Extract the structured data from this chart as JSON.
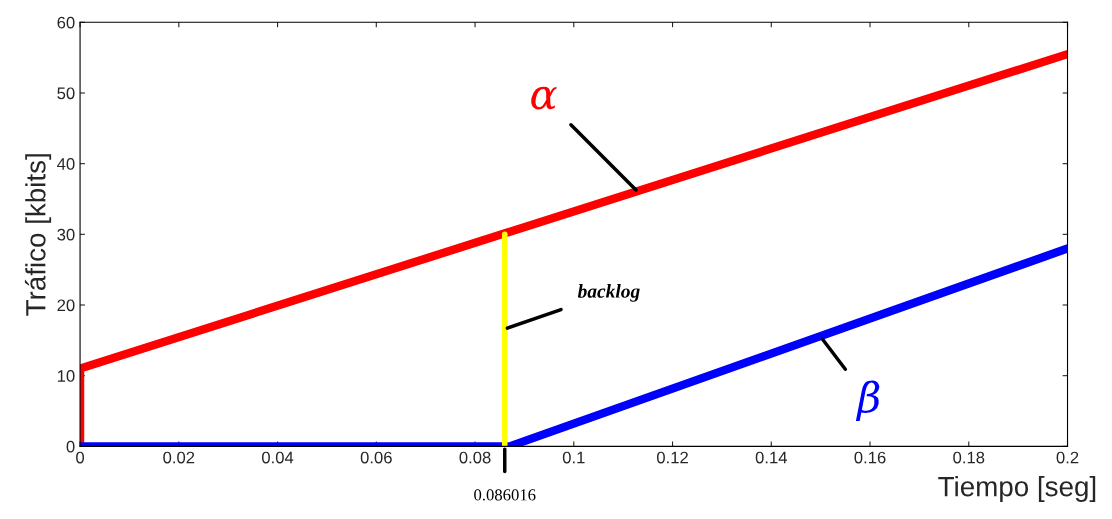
{
  "chart_data": {
    "type": "line",
    "xlabel": "Tiempo [seg]",
    "ylabel": "Tráfico [kbits]",
    "xlim": [
      0,
      0.2
    ],
    "ylim": [
      0,
      60
    ],
    "xticks": [
      0,
      0.02,
      0.04,
      0.06,
      0.08,
      0.1,
      0.12,
      0.14,
      0.16,
      0.18,
      0.2
    ],
    "yticks": [
      0,
      10,
      20,
      30,
      40,
      50,
      60
    ],
    "grid": false,
    "legend": false,
    "marker": "none",
    "line_style": "solid",
    "series": [
      {
        "color": "#ff0000",
        "x": [
          0,
          0,
          0.2
        ],
        "values": [
          0,
          11,
          55.5
        ]
      },
      {
        "color": "#0000ff",
        "x": [
          0,
          0.087,
          0.2
        ],
        "values": [
          0,
          0,
          28
        ]
      },
      {
        "color": "#ffff00",
        "x": [
          0.086016,
          0.086016
        ],
        "values": [
          0,
          30
        ]
      }
    ],
    "annotations": [
      {
        "text": "α",
        "x": 0.113,
        "y": 36
      },
      {
        "text": "β",
        "x": 0.15,
        "y": 15.5
      },
      {
        "text": "backlog",
        "x": 0.086016,
        "y": 16.6
      },
      {
        "text": "0.086016",
        "x": 0.086016,
        "y": 0
      }
    ]
  }
}
